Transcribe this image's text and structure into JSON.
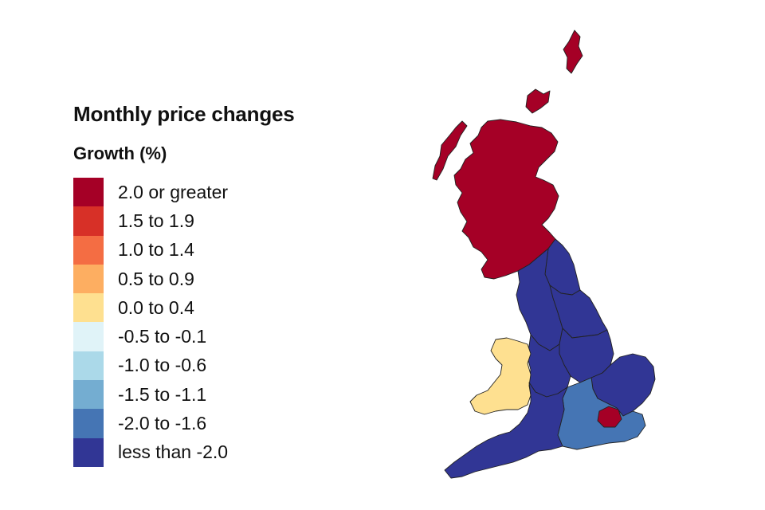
{
  "legend": {
    "title": "Monthly price changes",
    "subtitle": "Growth (%)",
    "items": [
      {
        "label": "2.0 or greater",
        "color": "#a50026"
      },
      {
        "label": "1.5 to 1.9",
        "color": "#d73027"
      },
      {
        "label": "1.0 to 1.4",
        "color": "#f46d43"
      },
      {
        "label": "0.5 to 0.9",
        "color": "#fdae61"
      },
      {
        "label": "0.0 to 0.4",
        "color": "#fee090"
      },
      {
        "label": "-0.5 to -0.1",
        "color": "#e0f3f8"
      },
      {
        "label": "-1.0 to -0.6",
        "color": "#abd9e9"
      },
      {
        "label": "-1.5 to -1.1",
        "color": "#74add1"
      },
      {
        "label": "-2.0 to -1.6",
        "color": "#4575b4"
      },
      {
        "label": "less than -2.0",
        "color": "#313695"
      }
    ]
  },
  "map": {
    "regions": [
      {
        "id": "scotland",
        "band": "2.0 or greater"
      },
      {
        "id": "london",
        "band": "2.0 or greater"
      },
      {
        "id": "wales",
        "band": "0.0 to 0.4"
      },
      {
        "id": "south-east",
        "band": "-2.0 to -1.6"
      },
      {
        "id": "north-east",
        "band": "less than -2.0"
      },
      {
        "id": "north-west",
        "band": "less than -2.0"
      },
      {
        "id": "yorkshire-and-the-humber",
        "band": "less than -2.0"
      },
      {
        "id": "east-midlands",
        "band": "less than -2.0"
      },
      {
        "id": "west-midlands",
        "band": "less than -2.0"
      },
      {
        "id": "east-of-england",
        "band": "less than -2.0"
      },
      {
        "id": "south-west",
        "band": "less than -2.0"
      }
    ]
  }
}
